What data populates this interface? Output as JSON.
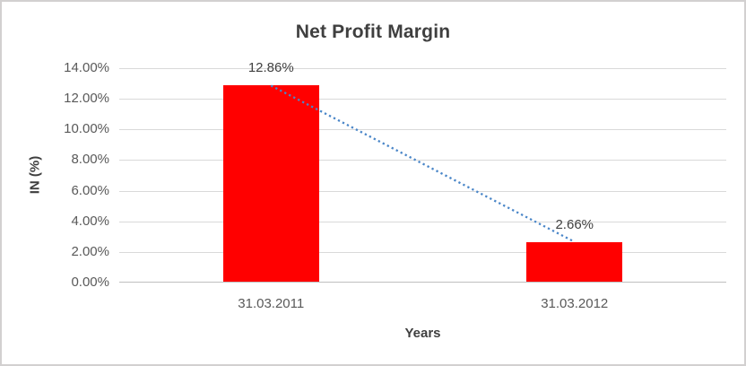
{
  "window": {
    "background": "#ffffff",
    "border_color": "#d2d0d0"
  },
  "chart_data": {
    "type": "bar",
    "title": "Net Profit Margin",
    "xlabel": "Years",
    "ylabel": "IN (%)",
    "categories": [
      "31.03.2011",
      "31.03.2012"
    ],
    "series": [
      {
        "name": "Net Profit Margin",
        "values": [
          12.86,
          2.66
        ]
      }
    ],
    "data_labels": [
      "12.86%",
      "2.66%"
    ],
    "ylim": [
      0,
      14
    ],
    "ytick_step": 2,
    "yticks": [
      "0.00%",
      "2.00%",
      "4.00%",
      "6.00%",
      "8.00%",
      "10.00%",
      "12.00%",
      "14.00%"
    ],
    "grid": "horizontal",
    "legend": "none",
    "trendline": {
      "kind": "linear",
      "style": "dotted",
      "points": [
        [
          0,
          12.86
        ],
        [
          1,
          2.66
        ]
      ]
    },
    "colors": {
      "bar": "#ff0000",
      "trendline": "#4a86c8",
      "gridline": "#d9d9d9",
      "axis_line": "#bfbfbf",
      "tick_text": "#595959",
      "title_text": "#3f3f3f",
      "data_label_text": "#404040"
    }
  }
}
